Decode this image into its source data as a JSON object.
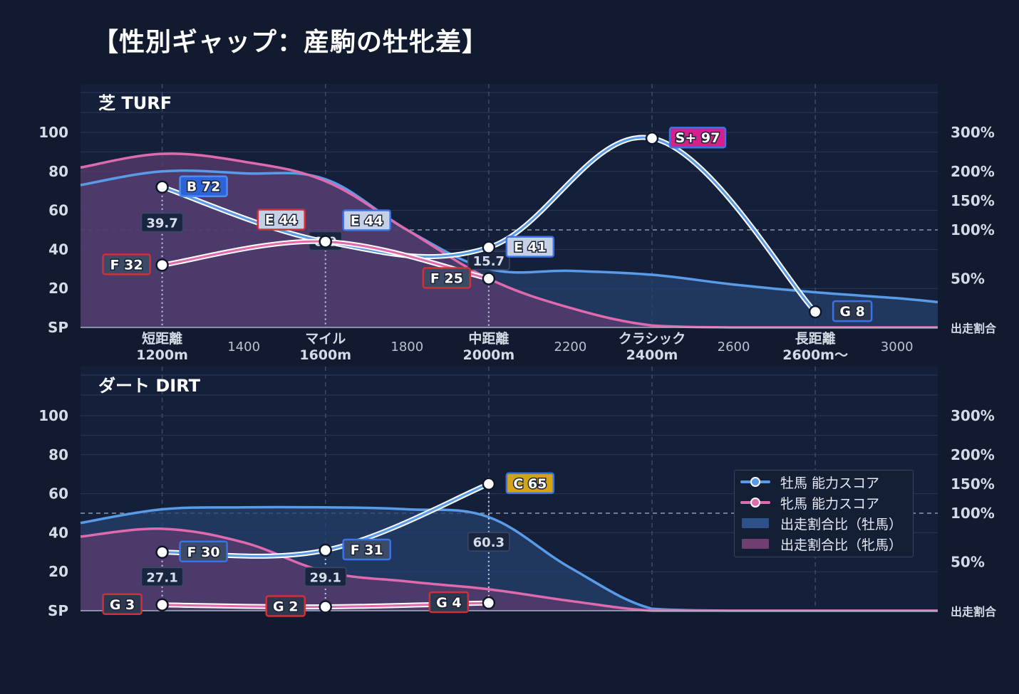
{
  "title": "【性別ギャップ：産駒の牡牝差】",
  "colors": {
    "background": "#111a2e",
    "plot_bg": "#14203a",
    "male": "#5a9be8",
    "female": "#e06aae",
    "male_fill": "#24406e",
    "female_fill": "#5a3b6e"
  },
  "legend": {
    "items": [
      {
        "label": "牡馬 能力スコア",
        "kind": "line",
        "color": "#5a9be8"
      },
      {
        "label": "牝馬 能力スコア",
        "kind": "line",
        "color": "#e06aae"
      },
      {
        "label": "出走割合比（牡馬）",
        "kind": "area",
        "color": "#2e5288"
      },
      {
        "label": "出走割合比（牝馬）",
        "kind": "area",
        "color": "#6e3f70"
      }
    ]
  },
  "chart_data": [
    {
      "type": "line",
      "title": "芝 TURF",
      "x_ticks": [
        {
          "label": "短距離\n1200m",
          "x": 1200,
          "major": true
        },
        {
          "label": "1400",
          "x": 1400,
          "major": false
        },
        {
          "label": "マイル\n1600m",
          "x": 1600,
          "major": true
        },
        {
          "label": "1800",
          "x": 1800,
          "major": false
        },
        {
          "label": "中距離\n2000m",
          "x": 2000,
          "major": true
        },
        {
          "label": "2200",
          "x": 2200,
          "major": false
        },
        {
          "label": "クラシック\n2400m",
          "x": 2400,
          "major": true
        },
        {
          "label": "2600",
          "x": 2600,
          "major": false
        },
        {
          "label": "長距離\n2600m〜",
          "x": 2800,
          "major": true
        },
        {
          "label": "3000",
          "x": 3000,
          "major": false
        }
      ],
      "xlim": [
        1000,
        3100
      ],
      "y_left": {
        "ticks": [
          "SP",
          "20",
          "40",
          "60",
          "80",
          "100"
        ],
        "ylim": [
          0,
          100
        ]
      },
      "y_right": {
        "ticks": [
          "出走割合",
          "50%",
          "100%",
          "150%",
          "200%",
          "300%"
        ]
      },
      "series": [
        {
          "name": "牡馬 能力スコア",
          "x": [
            1200,
            1600,
            2000,
            2400,
            2800
          ],
          "values": [
            72,
            44,
            41,
            97,
            8
          ],
          "grades": [
            "B",
            "E",
            "E",
            "S+",
            "G"
          ]
        },
        {
          "name": "牝馬 能力スコア",
          "x": [
            1200,
            1600,
            2000
          ],
          "values": [
            32,
            44,
            25
          ],
          "grades": [
            "F",
            "E",
            "F"
          ]
        }
      ],
      "ratio_labels": [
        {
          "x": 1200,
          "text": "39.7"
        },
        {
          "x": 1600,
          "text": "0.0"
        },
        {
          "x": 2000,
          "text": "15.7"
        }
      ],
      "area_male": {
        "x": [
          1000,
          1200,
          1400,
          1600,
          1800,
          2000,
          2200,
          2400,
          2600,
          2800,
          3000,
          3100
        ],
        "values": [
          73,
          80,
          79,
          76,
          50,
          30,
          29,
          27,
          22,
          18,
          15,
          13
        ]
      },
      "area_female": {
        "x": [
          1000,
          1200,
          1400,
          1600,
          1800,
          2000,
          2200,
          2400,
          2600,
          2800,
          3000,
          3100
        ],
        "values": [
          82,
          89,
          85,
          75,
          50,
          25,
          10,
          1,
          0,
          0,
          0,
          0
        ]
      }
    },
    {
      "type": "line",
      "title": "ダート DIRT",
      "x_ticks": [],
      "xlim": [
        1000,
        3100
      ],
      "y_left": {
        "ticks": [
          "SP",
          "20",
          "40",
          "60",
          "80",
          "100"
        ],
        "ylim": [
          0,
          100
        ]
      },
      "y_right": {
        "ticks": [
          "出走割合",
          "50%",
          "100%",
          "150%",
          "200%",
          "300%"
        ]
      },
      "series": [
        {
          "name": "牡馬 能力スコア",
          "x": [
            1200,
            1600,
            2000
          ],
          "values": [
            30,
            31,
            65
          ],
          "grades": [
            "F",
            "F",
            "C"
          ]
        },
        {
          "name": "牝馬 能力スコア",
          "x": [
            1200,
            1600,
            2000
          ],
          "values": [
            3,
            2,
            4
          ],
          "grades": [
            "G",
            "G",
            "G"
          ]
        }
      ],
      "ratio_labels": [
        {
          "x": 1200,
          "text": "27.1"
        },
        {
          "x": 1600,
          "text": "29.1"
        },
        {
          "x": 2000,
          "text": "60.3"
        }
      ],
      "area_male": {
        "x": [
          1000,
          1200,
          1400,
          1600,
          1800,
          2000,
          2200,
          2400,
          2600,
          2800,
          3000,
          3100
        ],
        "values": [
          45,
          52,
          53,
          53,
          52,
          48,
          22,
          1,
          0,
          0,
          0,
          0
        ]
      },
      "area_female": {
        "x": [
          1000,
          1200,
          1400,
          1600,
          1800,
          2000,
          2200,
          2400,
          2600,
          2800,
          3000,
          3100
        ],
        "values": [
          38,
          42,
          35,
          20,
          15,
          11,
          5,
          0,
          0,
          0,
          0,
          0
        ]
      }
    }
  ]
}
